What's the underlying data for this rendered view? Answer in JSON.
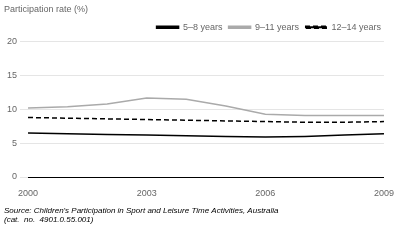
{
  "chart_data": {
    "type": "line",
    "ylabel": "Participation rate (%)",
    "x": [
      2000,
      2001,
      2002,
      2003,
      2004,
      2005,
      2006,
      2007,
      2008,
      2009
    ],
    "series": [
      {
        "name": "5–8 years",
        "color": "#000000",
        "line_style": "solid",
        "values": [
          6.5,
          6.4,
          6.3,
          6.2,
          6.1,
          6.0,
          5.9,
          6.0,
          6.2,
          6.4
        ]
      },
      {
        "name": "9–11 years",
        "color": "#aaaaaa",
        "line_style": "solid",
        "values": [
          10.2,
          10.4,
          10.8,
          11.7,
          11.5,
          10.5,
          9.3,
          9.1,
          9.1,
          9.1
        ]
      },
      {
        "name": "12–14 years",
        "color": "#000000",
        "line_style": "dashed",
        "values": [
          8.8,
          8.7,
          8.6,
          8.5,
          8.4,
          8.3,
          8.2,
          8.1,
          8.1,
          8.2
        ]
      }
    ],
    "xlim": [
      2000,
      2009
    ],
    "xticks": [
      2000,
      2003,
      2006,
      2009
    ],
    "ylim": [
      0,
      20
    ],
    "yticks": [
      0,
      5,
      10,
      15,
      20
    ],
    "grid": true,
    "legend": "upper right",
    "annotations": [
      "Source: Children's Participation in Sport and Leisure Time Activities, Australia",
      "(cat.  no.  4901.0.55.001)"
    ]
  }
}
